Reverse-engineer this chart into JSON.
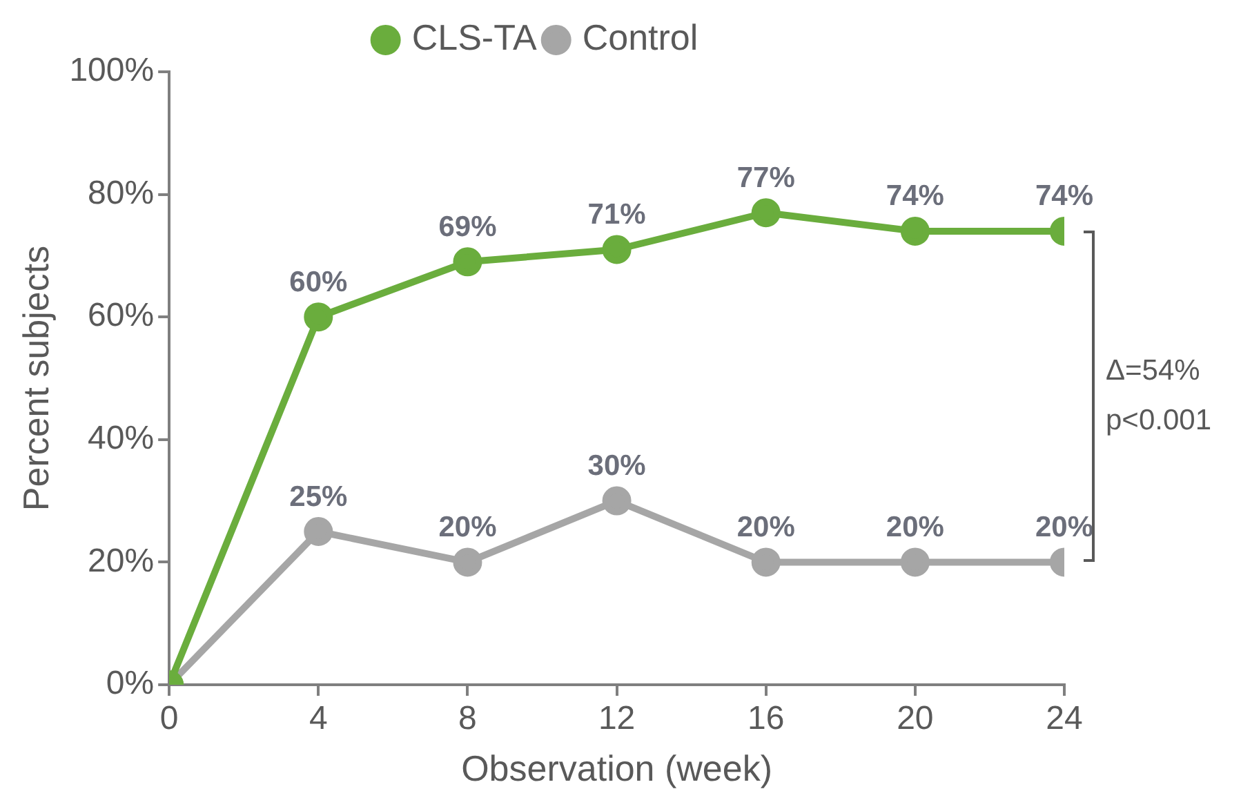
{
  "chart_data": {
    "type": "line",
    "xlabel": "Observation (week)",
    "ylabel": "Percent subjects",
    "x": [
      0,
      4,
      8,
      12,
      16,
      20,
      24
    ],
    "series": [
      {
        "name": "CLS-TA",
        "color": "#6aad3d",
        "values": [
          0,
          60,
          69,
          71,
          77,
          74,
          74
        ],
        "value_labels": [
          null,
          "60%",
          "69%",
          "71%",
          "77%",
          "74%",
          "74%"
        ]
      },
      {
        "name": "Control",
        "color": "#a6a6a6",
        "values": [
          0,
          25,
          20,
          30,
          20,
          20,
          20
        ],
        "value_labels": [
          null,
          "25%",
          "20%",
          "30%",
          "20%",
          "20%",
          "20%"
        ]
      }
    ],
    "xlim": [
      0,
      24
    ],
    "xticks": [
      0,
      4,
      8,
      12,
      16,
      20,
      24
    ],
    "ylim": [
      0,
      100
    ],
    "yticks": [
      {
        "value": 0,
        "label": "0%"
      },
      {
        "value": 20,
        "label": "20%"
      },
      {
        "value": 40,
        "label": "40%"
      },
      {
        "value": 60,
        "label": "60%"
      },
      {
        "value": 80,
        "label": "80%"
      },
      {
        "value": 100,
        "label": "100%"
      }
    ],
    "annotations": [
      "Δ=54%",
      "p<0.001"
    ],
    "grid": false,
    "legend": "top",
    "marker": "circle",
    "line_style": "solid"
  }
}
